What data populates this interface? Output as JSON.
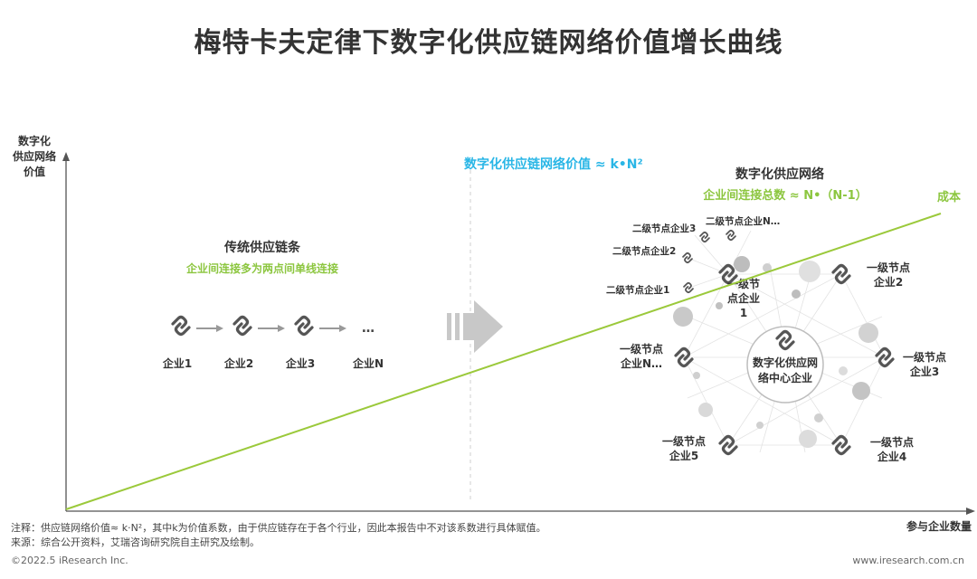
{
  "title": "梅特卡夫定律下数字化供应链网络价值增长曲线",
  "axes": {
    "y_label_lines": [
      "数字化",
      "供应网络",
      "价值"
    ],
    "x_label": "参与企业数量"
  },
  "formula_value": "数字化供应链网络价值 ≈ k•N²",
  "cost_label": "成本",
  "traditional": {
    "title": "传统供应链条",
    "subtitle": "企业间连接多为两点间单线连接",
    "ellipsis": "…",
    "companies": [
      "企业1",
      "企业2",
      "企业3",
      "企业N"
    ]
  },
  "digital": {
    "title": "数字化供应网络",
    "subtitle": "企业间连接总数 ≈ N•（N-1）",
    "center": [
      "数字化供应网",
      "络中心企业"
    ],
    "first_level": [
      {
        "lines": [
          "一级节",
          "点企业",
          "1"
        ]
      },
      {
        "lines": [
          "一级节点",
          "企业2"
        ]
      },
      {
        "lines": [
          "一级节点",
          "企业3"
        ]
      },
      {
        "lines": [
          "一级节点",
          "企业4"
        ]
      },
      {
        "lines": [
          "一级节点",
          "企业5"
        ]
      },
      {
        "lines": [
          "一级节点",
          "企业N…"
        ]
      }
    ],
    "second_level": [
      "二级节点企业1",
      "二级节点企业2",
      "二级节点企业3",
      "二级节点企业N…"
    ]
  },
  "notes": {
    "note": "注释：供应链网络价值≈ k·N²，其中k为价值系数，由于供应链存在于各个行业，因此本报告中不对该系数进行具体赋值。",
    "source": "来源：综合公开资料，艾瑞咨询研究院自主研究及绘制。"
  },
  "footer": {
    "left": "©2022.5 iResearch Inc.",
    "right": "www.iresearch.com.cn"
  },
  "colors": {
    "green": "#8cc63f",
    "cyan": "#29b6e6",
    "dark": "#333333",
    "gray_arrow": "#c8c8c8",
    "link_icon": "#555555"
  }
}
